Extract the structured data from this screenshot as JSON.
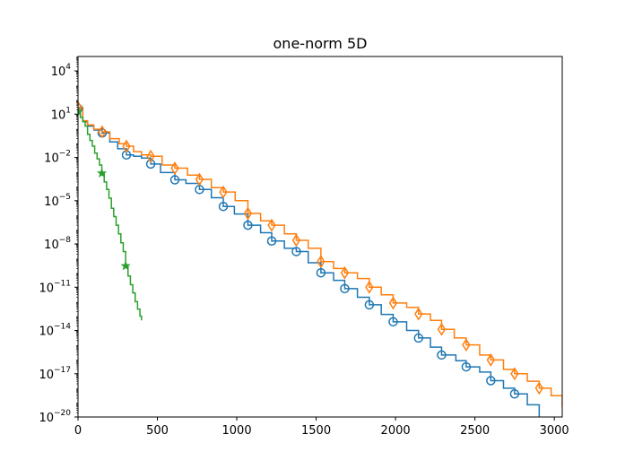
{
  "chart_data": {
    "type": "line",
    "title": "one-norm 5D",
    "xlabel": "",
    "ylabel": "",
    "xlim": [
      0,
      3050
    ],
    "ylim": [
      1e-20,
      100000.0
    ],
    "yscale": "log",
    "grid": false,
    "xticks": [
      0,
      500,
      1000,
      1500,
      2000,
      2500,
      3000
    ],
    "xtick_labels": [
      "0",
      "500",
      "1000",
      "1500",
      "2000",
      "2500",
      "3000"
    ],
    "yticks": [
      10000.0,
      10.0,
      0.01,
      1e-05,
      1e-08,
      1e-11,
      1e-14,
      1e-17,
      1e-20
    ],
    "ytick_labels": [
      {
        "base": "10",
        "exp": "4"
      },
      {
        "base": "10",
        "exp": "1"
      },
      {
        "base": "10",
        "exp": "−2"
      },
      {
        "base": "10",
        "exp": "−5"
      },
      {
        "base": "10",
        "exp": "−8"
      },
      {
        "base": "10",
        "exp": "−11"
      },
      {
        "base": "10",
        "exp": "−14"
      },
      {
        "base": "10",
        "exp": "−17"
      },
      {
        "base": "10",
        "exp": "−20"
      }
    ],
    "series": [
      {
        "color": "#1f77b4",
        "marker": "circle",
        "step": true,
        "x": [
          0,
          30,
          60,
          100,
          152,
          200,
          250,
          305,
          350,
          400,
          458,
          520,
          610,
          680,
          765,
          840,
          915,
          985,
          1070,
          1150,
          1220,
          1300,
          1375,
          1450,
          1530,
          1610,
          1680,
          1760,
          1835,
          1910,
          1985,
          2070,
          2145,
          2220,
          2290,
          2380,
          2445,
          2530,
          2600,
          2680,
          2750,
          2830,
          2905
        ],
        "y": [
          25,
          3,
          1.5,
          0.8,
          0.5,
          0.12,
          0.04,
          0.015,
          0.012,
          0.009,
          0.0035,
          0.0009,
          0.00028,
          0.00016,
          6e-05,
          1.6e-05,
          4e-06,
          1.2e-06,
          2e-07,
          6e-08,
          1.6e-08,
          5e-09,
          3e-09,
          5e-10,
          1e-10,
          3e-11,
          8e-12,
          2e-12,
          6e-13,
          1.3e-13,
          4e-14,
          1e-14,
          3e-15,
          7e-16,
          2e-16,
          8e-17,
          3e-17,
          1.3e-17,
          3.3e-18,
          1e-18,
          4e-19,
          7e-20,
          1e-20
        ],
        "markers_x": [
          0,
          152,
          305,
          458,
          610,
          765,
          915,
          1070,
          1220,
          1375,
          1530,
          1680,
          1835,
          1985,
          2145,
          2290,
          2445,
          2600,
          2750
        ],
        "markers_y": [
          25,
          0.5,
          0.015,
          0.0035,
          0.00028,
          6e-05,
          4e-06,
          2e-07,
          1.6e-08,
          3e-09,
          1e-10,
          8e-12,
          6e-13,
          4e-14,
          3e-15,
          2e-16,
          3e-17,
          3.3e-18,
          4e-19
        ]
      },
      {
        "color": "#ff7f0e",
        "marker": "thin_diamond",
        "step": true,
        "x": [
          0,
          30,
          60,
          100,
          152,
          200,
          260,
          305,
          350,
          400,
          458,
          530,
          610,
          690,
          765,
          840,
          915,
          990,
          1070,
          1150,
          1220,
          1300,
          1375,
          1450,
          1530,
          1610,
          1680,
          1760,
          1835,
          1910,
          1985,
          2070,
          2145,
          2220,
          2290,
          2370,
          2445,
          2530,
          2600,
          2680,
          2750,
          2830,
          2905,
          2980,
          3050
        ],
        "y": [
          30,
          3.5,
          1.8,
          0.9,
          0.6,
          0.2,
          0.09,
          0.06,
          0.025,
          0.015,
          0.012,
          0.003,
          0.0018,
          0.0006,
          0.0003,
          8e-05,
          4e-05,
          1e-05,
          1.3e-06,
          4e-07,
          2e-07,
          5e-08,
          1.8e-08,
          5e-09,
          6e-10,
          2e-10,
          1e-10,
          4e-11,
          1e-11,
          3e-12,
          8e-13,
          4e-13,
          1.4e-13,
          5e-14,
          1.2e-14,
          3e-15,
          1e-15,
          2e-16,
          9e-17,
          2e-17,
          1e-17,
          3e-18,
          1e-18,
          3e-19,
          5e-20
        ],
        "markers_x": [
          0,
          152,
          305,
          458,
          610,
          765,
          915,
          1070,
          1220,
          1375,
          1530,
          1680,
          1835,
          1985,
          2145,
          2290,
          2445,
          2600,
          2750,
          2905
        ],
        "markers_y": [
          30,
          0.6,
          0.06,
          0.012,
          0.0018,
          0.0003,
          4e-05,
          1.3e-06,
          2e-07,
          1.8e-08,
          6e-10,
          1e-10,
          1e-11,
          8e-13,
          1.4e-13,
          1.2e-14,
          1e-15,
          9e-17,
          1e-17,
          1e-18
        ]
      },
      {
        "color": "#2ca02c",
        "marker": "star",
        "step": true,
        "x": [
          0,
          15,
          30,
          45,
          60,
          75,
          90,
          105,
          120,
          135,
          150,
          165,
          180,
          195,
          210,
          225,
          240,
          255,
          270,
          285,
          300,
          315,
          330,
          345,
          360,
          375,
          390,
          400
        ],
        "y": [
          15,
          6,
          3,
          1.5,
          0.4,
          0.15,
          0.06,
          0.02,
          0.008,
          0.003,
          0.0008,
          0.0002,
          6e-05,
          1.5e-05,
          3e-06,
          8e-07,
          2e-07,
          5e-08,
          1.2e-08,
          3e-09,
          3e-10,
          6e-11,
          1.5e-11,
          4e-12,
          1e-12,
          3e-13,
          1e-13,
          5e-14
        ],
        "markers_x": [
          0,
          150,
          300
        ],
        "markers_y": [
          15,
          0.0008,
          3e-10
        ]
      }
    ]
  }
}
